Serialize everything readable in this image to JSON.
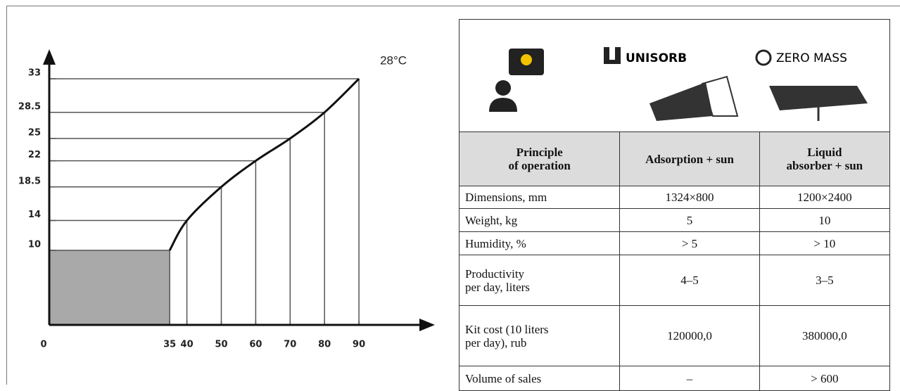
{
  "chart_data": {
    "type": "line",
    "x": [
      35,
      40,
      50,
      60,
      70,
      80,
      90
    ],
    "series": [
      {
        "name": "28°C",
        "color": "#111111",
        "values": [
          10,
          14,
          18.5,
          22,
          25,
          28.5,
          33
        ]
      }
    ],
    "xlim": [
      0,
      100
    ],
    "ylim": [
      0,
      38
    ],
    "xticks": [
      0,
      35,
      40,
      50,
      60,
      70,
      80,
      90
    ],
    "yticks": [
      10,
      14,
      18.5,
      22,
      25,
      28.5,
      33
    ],
    "shaded_box": {
      "x": 35,
      "y": 10,
      "color": "#a9a9a9"
    }
  },
  "table": {
    "logos": [
      "UNISORB",
      "ZERO MASS"
    ],
    "header": [
      "Principle\nof operation",
      "Adsorption + sun",
      "Liquid\nabsorber + sun"
    ],
    "rows": [
      [
        "Dimensions, mm",
        "1324×800",
        "1200×2400"
      ],
      [
        "Weight, kg",
        "5",
        "10"
      ],
      [
        "Humidity, %",
        "> 5",
        "> 10"
      ],
      [
        "Productivity\nper day, liters",
        "4–5",
        "3–5"
      ],
      [
        "Kit cost (10 liters\nper day), rub",
        "120000,0",
        "380000,0"
      ],
      [
        "Volume of sales",
        "–",
        "> 600"
      ]
    ]
  }
}
